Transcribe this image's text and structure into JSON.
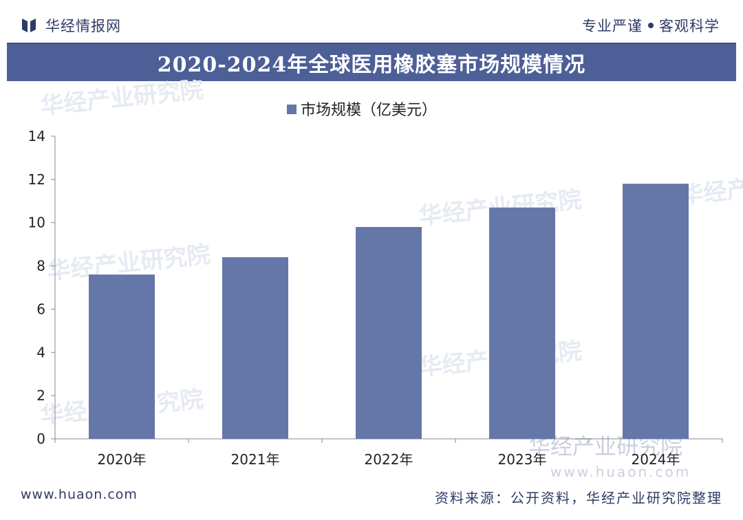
{
  "header": {
    "brand": "华经情报网",
    "slogan_left": "专业严谨",
    "slogan_right": "客观科学"
  },
  "chart_data": {
    "type": "bar",
    "title": "2020-2024年全球医用橡胶塞市场规模情况",
    "categories": [
      "2020年",
      "2021年",
      "2022年",
      "2023年",
      "2024年"
    ],
    "series": [
      {
        "name": "市场规模（亿美元）",
        "values": [
          7.6,
          8.4,
          9.8,
          10.7,
          11.8
        ]
      }
    ],
    "ylim": [
      0,
      14
    ],
    "yticks": [
      0,
      2,
      4,
      6,
      8,
      10,
      12,
      14
    ],
    "xlabel": "",
    "ylabel": "",
    "legend_position": "top-center",
    "grid": false
  },
  "watermark": {
    "name": "华经产业研究院",
    "url": "www.huaon.com"
  },
  "footer": {
    "url": "www.huaon.com",
    "source": "资料来源：公开资料，华经产业研究院整理"
  },
  "colors": {
    "bar": "#6577a8",
    "title_bar": "#4c5f97",
    "text": "#2f3b66",
    "axis": "#888888"
  }
}
